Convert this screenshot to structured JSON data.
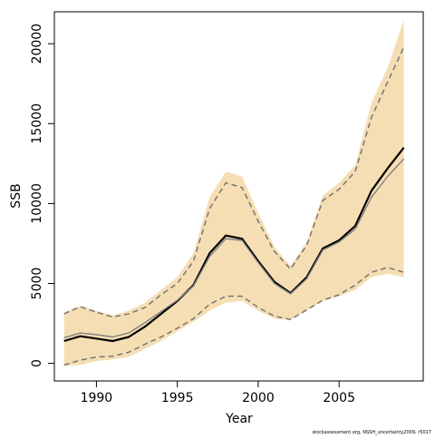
{
  "chart_data": {
    "type": "line",
    "title": "",
    "xlabel": "Year",
    "ylabel": "SSB",
    "xlim": [
      1987.4,
      2010.2
    ],
    "ylim": [
      -1100,
      22000
    ],
    "xticks": [
      "1990",
      "1995",
      "2000",
      "2005"
    ],
    "yticks": [
      "0",
      "5000",
      "10000",
      "15000",
      "20000"
    ],
    "grid": false,
    "legend": "none",
    "footnote": "stockassessment.org, NSSH_uncertainty2009, r5017",
    "colors": {
      "band": "#f5deb3",
      "estimate": "#000000",
      "alternative": "#808080",
      "bounds": "#707070",
      "axes": "#000000"
    },
    "x": [
      1988,
      1989,
      1990,
      1991,
      1992,
      1993,
      1994,
      1995,
      1996,
      1997,
      1998,
      1999,
      2000,
      2001,
      2002,
      2003,
      2004,
      2005,
      2006,
      2007,
      2008,
      2009
    ],
    "band": {
      "upper": [
        3200,
        3600,
        3300,
        3000,
        3300,
        3800,
        4600,
        5400,
        6900,
        10400,
        12000,
        11700,
        9400,
        7300,
        6100,
        7600,
        10500,
        11300,
        12400,
        16300,
        18500,
        21500
      ],
      "lower": [
        -150,
        -100,
        150,
        250,
        400,
        900,
        1400,
        2000,
        2600,
        3300,
        3800,
        3900,
        3300,
        2800,
        2700,
        3300,
        3900,
        4200,
        4600,
        5400,
        5600,
        5400
      ]
    },
    "series": [
      {
        "role": "estimate",
        "style": "solid-thick",
        "values": [
          1400,
          1700,
          1550,
          1400,
          1650,
          2300,
          3100,
          3900,
          4900,
          6900,
          8000,
          7800,
          6400,
          5100,
          4400,
          5400,
          7200,
          7700,
          8600,
          10800,
          12200,
          13500
        ]
      },
      {
        "role": "alternative",
        "style": "solid-thin",
        "values": [
          1600,
          1900,
          1800,
          1650,
          1900,
          2550,
          3250,
          3950,
          4850,
          6700,
          7800,
          7700,
          6300,
          5000,
          4350,
          5300,
          7100,
          7600,
          8400,
          10400,
          11700,
          12800
        ]
      },
      {
        "role": "upper-bound",
        "style": "dashed",
        "values": [
          3100,
          3550,
          3200,
          2900,
          3100,
          3500,
          4300,
          5000,
          6400,
          9700,
          11300,
          11000,
          8900,
          7000,
          5900,
          7400,
          10200,
          10900,
          12000,
          15400,
          17600,
          19800
        ]
      },
      {
        "role": "lower-bound",
        "style": "dashed",
        "values": [
          -100,
          200,
          400,
          450,
          700,
          1200,
          1650,
          2200,
          2800,
          3700,
          4200,
          4200,
          3500,
          2950,
          2750,
          3350,
          3950,
          4300,
          4900,
          5700,
          6000,
          5700
        ]
      }
    ]
  }
}
